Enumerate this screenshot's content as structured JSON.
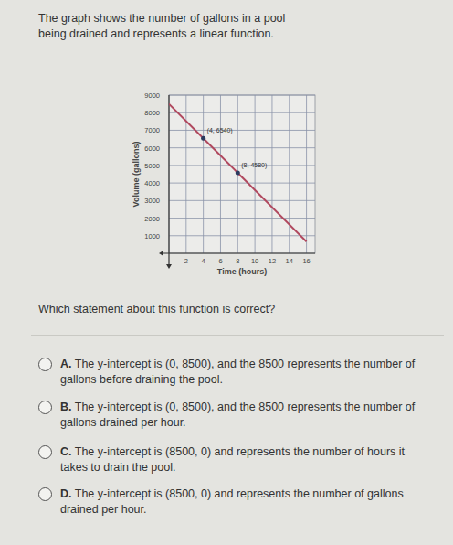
{
  "intro": "The graph shows the number of gallons in a pool being drained and represents a linear function.",
  "chart_data": {
    "type": "line",
    "xlabel": "Time (hours)",
    "ylabel": "Volume (gallons)",
    "x": [
      0,
      4,
      8,
      16
    ],
    "values": [
      8500,
      6540,
      4580,
      660
    ],
    "color": "#b0495f",
    "xlim": [
      0,
      17
    ],
    "xticks": [
      2,
      4,
      6,
      8,
      10,
      12,
      14,
      16
    ],
    "ylim": [
      0,
      9000
    ],
    "yticks": [
      1000,
      2000,
      3000,
      4000,
      5000,
      6000,
      7000,
      8000,
      9000
    ],
    "grid": true,
    "marker": "circle",
    "annotations": [
      {
        "x": 4,
        "y": 6540,
        "text": "(4, 6540)"
      },
      {
        "x": 8,
        "y": 4580,
        "text": "(8, 4580)"
      }
    ]
  },
  "question": "Which statement about this function is correct?",
  "options": [
    {
      "letter": "A.",
      "text": "The y-intercept is (0, 8500), and the 8500 represents the number of gallons before draining the pool."
    },
    {
      "letter": "B.",
      "text": "The y-intercept is (0, 8500), and the 8500 represents the number of gallons drained per hour."
    },
    {
      "letter": "C.",
      "text": "The y-intercept is (8500, 0) and represents the number of hours it takes to drain the pool."
    },
    {
      "letter": "D.",
      "text": "The y-intercept is (8500, 0) and represents the number of gallons drained per hour."
    }
  ]
}
